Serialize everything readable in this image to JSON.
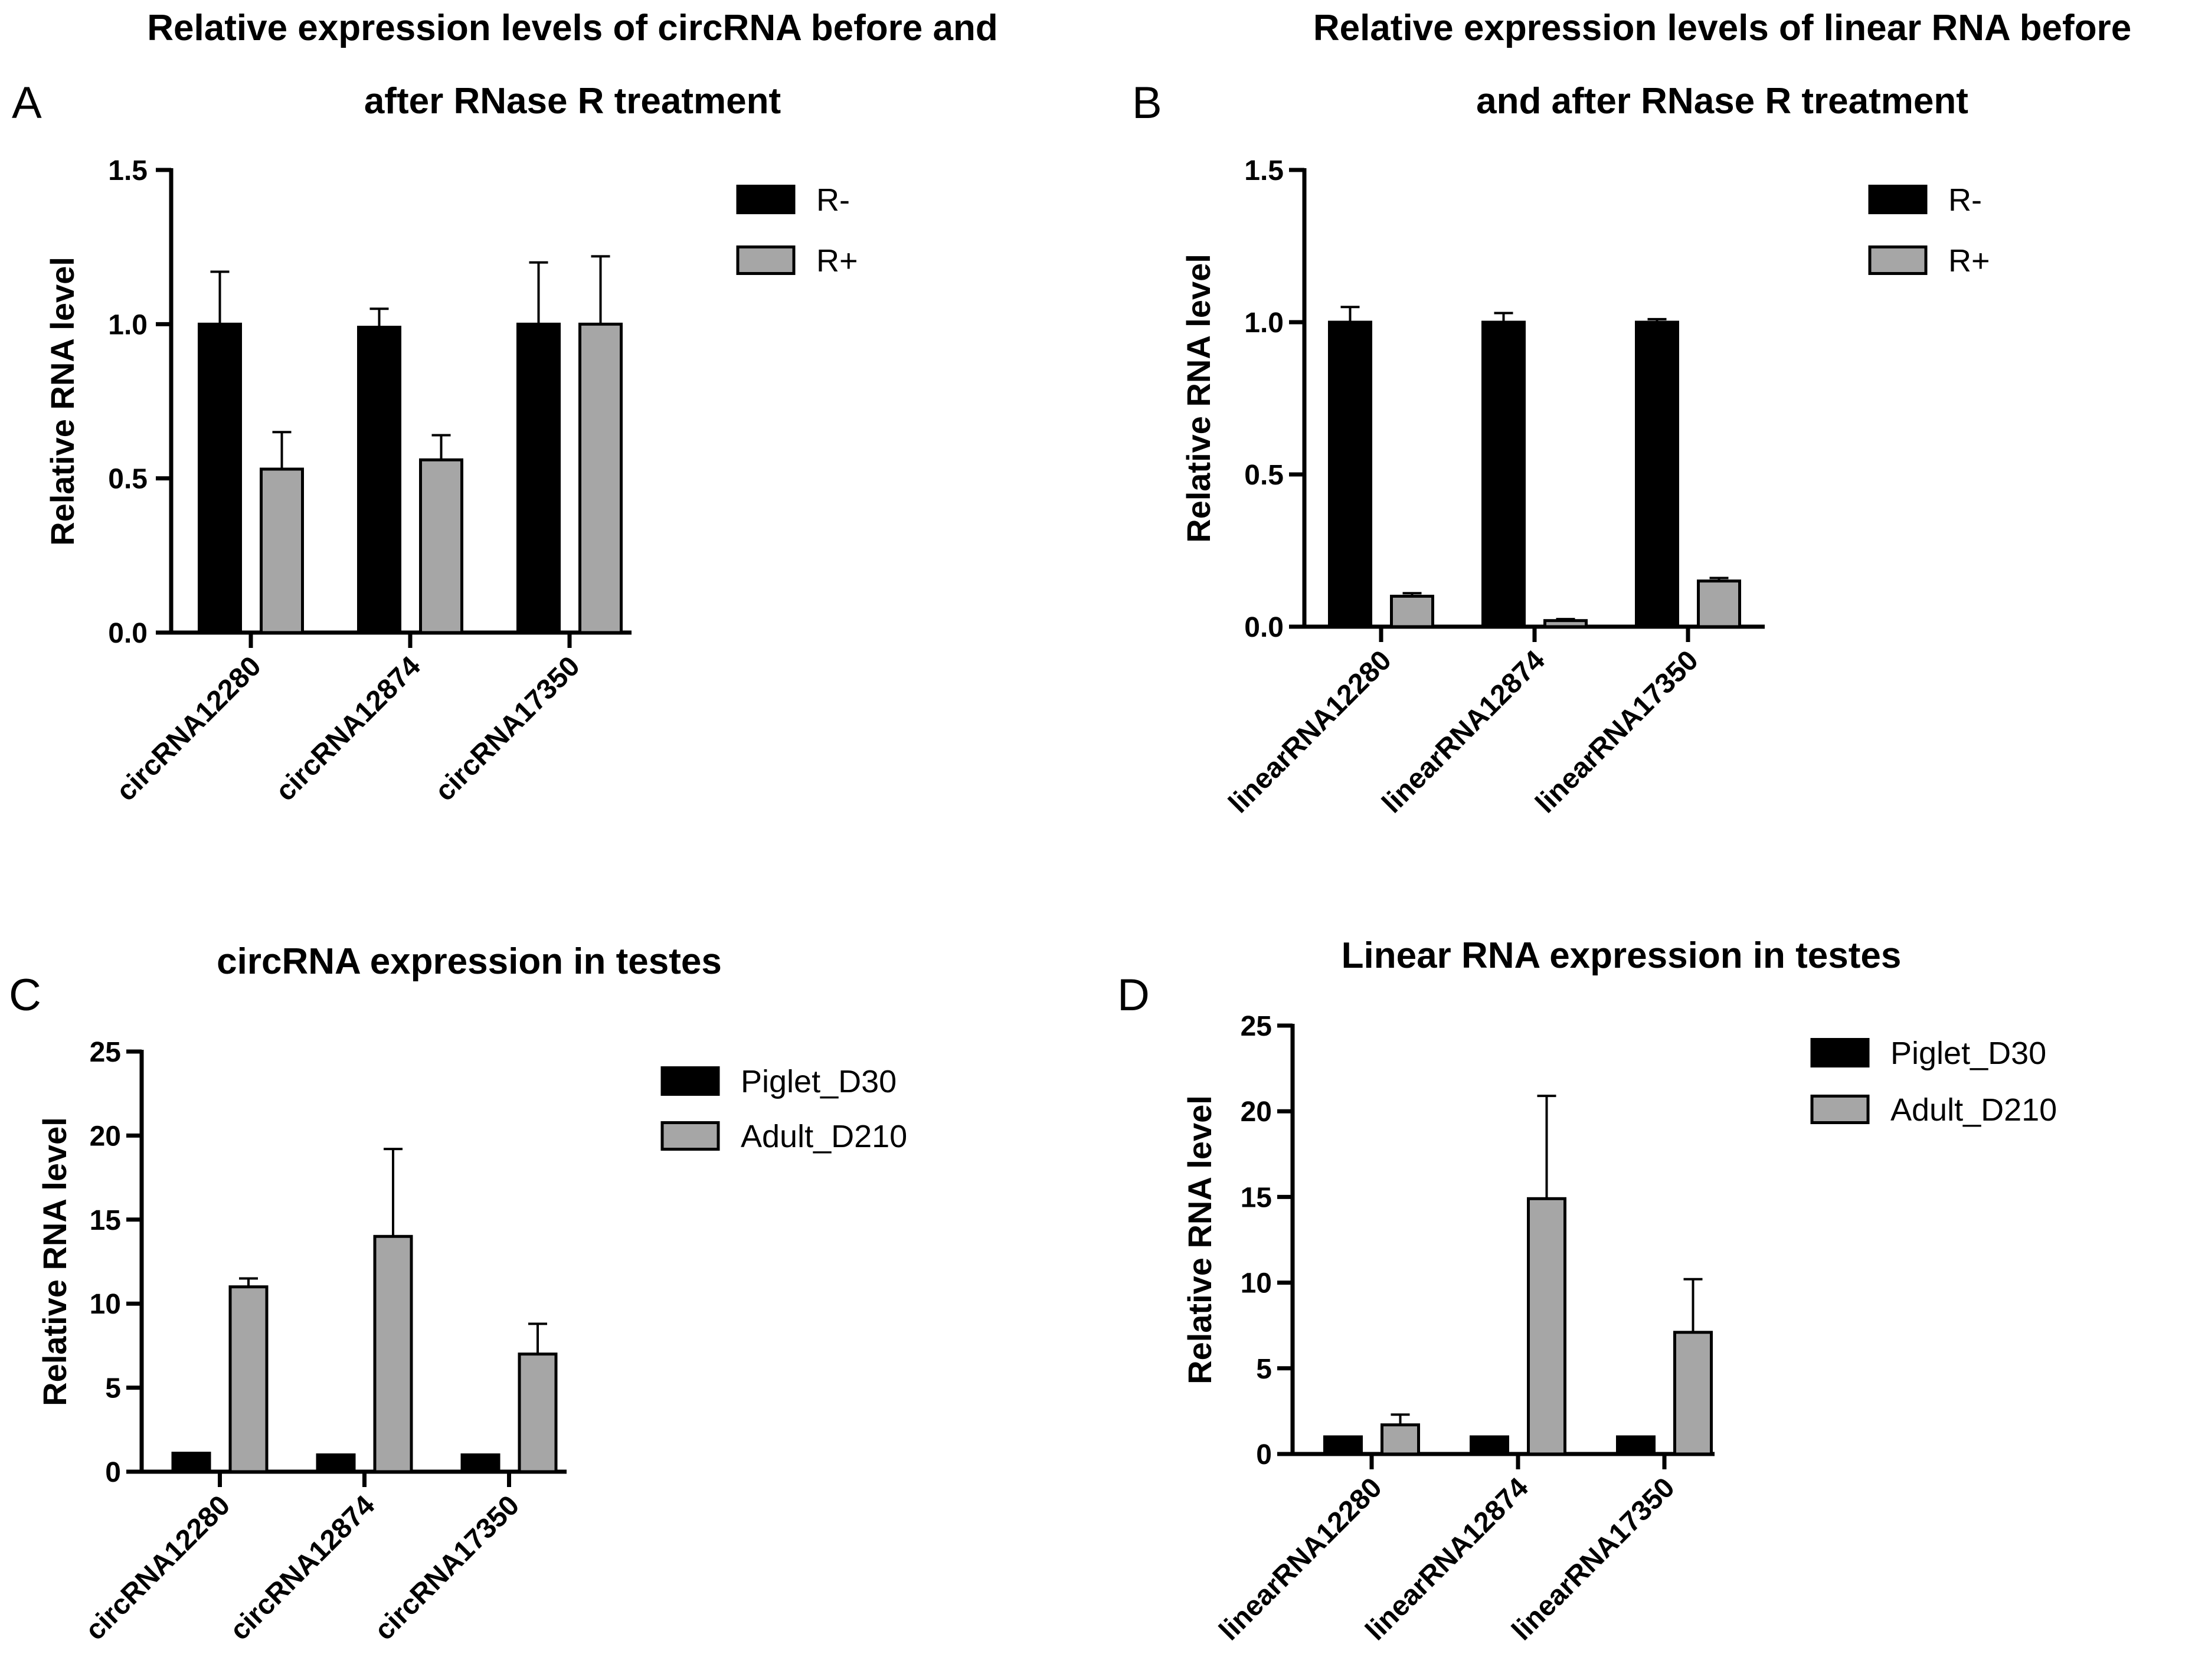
{
  "chart_data": [
    {
      "panel": "A",
      "type": "bar",
      "title_lines": [
        "Relative expression levels of circRNA before and",
        "after RNase R treatment"
      ],
      "ylabel": "Relative RNA level",
      "xlabel": "",
      "ylim": [
        0,
        1.5
      ],
      "yticks": [
        0.0,
        0.5,
        1.0,
        1.5
      ],
      "ytick_labels": [
        "0.0",
        "0.5",
        "1.0",
        "1.5"
      ],
      "categories": [
        "circRNA12280",
        "circRNA12874",
        "circRNA17350"
      ],
      "series": [
        {
          "name": "R-",
          "color": "#000000",
          "values": [
            1.0,
            0.99,
            1.0
          ],
          "errors": [
            0.17,
            0.06,
            0.2
          ]
        },
        {
          "name": "R+",
          "color": "#a6a6a6",
          "values": [
            0.53,
            0.56,
            1.0
          ],
          "errors": [
            0.12,
            0.08,
            0.22
          ]
        }
      ],
      "legend": "top-right"
    },
    {
      "panel": "B",
      "type": "bar",
      "title_lines": [
        "Relative expression levels of linear RNA before",
        "and after RNase R treatment"
      ],
      "ylabel": "Relative RNA level",
      "xlabel": "",
      "ylim": [
        0,
        1.5
      ],
      "yticks": [
        0.0,
        0.5,
        1.0,
        1.5
      ],
      "ytick_labels": [
        "0.0",
        "0.5",
        "1.0",
        "1.5"
      ],
      "categories": [
        "linearRNA12280",
        "linearRNA12874",
        "linearRNA17350"
      ],
      "series": [
        {
          "name": "R-",
          "color": "#000000",
          "values": [
            1.0,
            1.0,
            1.0
          ],
          "errors": [
            0.05,
            0.03,
            0.01
          ]
        },
        {
          "name": "R+",
          "color": "#a6a6a6",
          "values": [
            0.1,
            0.02,
            0.15
          ],
          "errors": [
            0.01,
            0.005,
            0.01
          ]
        }
      ],
      "legend": "top-right"
    },
    {
      "panel": "C",
      "type": "bar",
      "title_lines": [
        "circRNA expression in testes"
      ],
      "ylabel": "Relative RNA level",
      "xlabel": "",
      "ylim": [
        0,
        25
      ],
      "yticks": [
        0,
        5,
        10,
        15,
        20,
        25
      ],
      "ytick_labels": [
        "0",
        "5",
        "10",
        "15",
        "20",
        "25"
      ],
      "categories": [
        "circRNA12280",
        "circRNA12874",
        "circRNA17350"
      ],
      "series": [
        {
          "name": "Piglet_D30",
          "color": "#000000",
          "values": [
            1.1,
            1.0,
            1.0
          ],
          "errors": [
            0,
            0,
            0
          ]
        },
        {
          "name": "Adult_D210",
          "color": "#a6a6a6",
          "values": [
            11.0,
            14.0,
            7.0
          ],
          "errors": [
            0.5,
            5.2,
            1.8
          ]
        }
      ],
      "legend": "top-right"
    },
    {
      "panel": "D",
      "type": "bar",
      "title_lines": [
        "Linear RNA expression in testes"
      ],
      "ylabel": "Relative RNA level",
      "xlabel": "",
      "ylim": [
        0,
        25
      ],
      "yticks": [
        0,
        5,
        10,
        15,
        20,
        25
      ],
      "ytick_labels": [
        "0",
        "5",
        "10",
        "15",
        "20",
        "25"
      ],
      "categories": [
        "linearRNA12280",
        "linearRNA12874",
        "linearRNA17350"
      ],
      "series": [
        {
          "name": "Piglet_D30",
          "color": "#000000",
          "values": [
            1.0,
            1.0,
            1.0
          ],
          "errors": [
            0,
            0,
            0
          ]
        },
        {
          "name": "Adult_D210",
          "color": "#a6a6a6",
          "values": [
            1.7,
            14.9,
            7.1
          ],
          "errors": [
            0.6,
            6.0,
            3.1
          ]
        }
      ],
      "legend": "top-right"
    }
  ]
}
